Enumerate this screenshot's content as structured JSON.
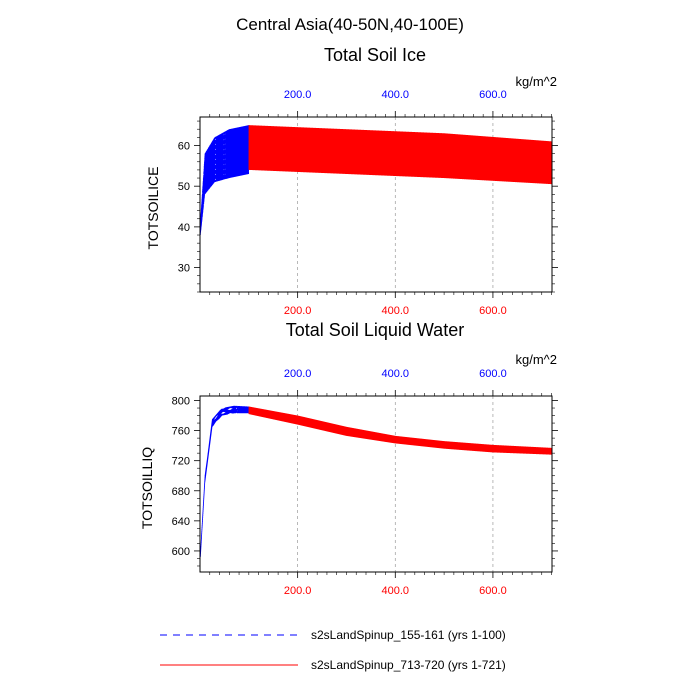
{
  "figure": {
    "suptitle": "Central Asia(40-50N,40-100E)"
  },
  "colors": {
    "series_a": "#0000ff",
    "series_b": "#ff0000",
    "axis": "#000000",
    "grid": "#9a9a9a"
  },
  "chart_data": [
    {
      "type": "line",
      "title": "Total Soil Ice",
      "ylabel": "TOTSOILICE",
      "units_label": "kg/m^2",
      "xlim": [
        0,
        721
      ],
      "ylim": [
        24,
        67
      ],
      "yticks": [
        30,
        40,
        50,
        60
      ],
      "ytick_labels": [
        "30",
        "40",
        "50",
        "60"
      ],
      "xticks": [
        200,
        400,
        600
      ],
      "top_tick_labels": [
        "200.0",
        "400.0",
        "600.0"
      ],
      "bottom_tick_labels": [
        "200.0",
        "400.0",
        "600.0"
      ],
      "series": [
        {
          "name": "s2sLandSpinup_155-161 (yrs 1-100)",
          "color": "#0000ff",
          "dashed": true,
          "x_range": [
            1,
            100
          ],
          "start_value": 38,
          "upper_envelope": [
            [
              1,
              42
            ],
            [
              10,
              58
            ],
            [
              30,
              62
            ],
            [
              60,
              64
            ],
            [
              100,
              65
            ]
          ],
          "lower_envelope": [
            [
              1,
              38
            ],
            [
              10,
              48
            ],
            [
              30,
              51
            ],
            [
              60,
              52
            ],
            [
              100,
              53
            ]
          ]
        },
        {
          "name": "s2sLandSpinup_713-720 (yrs 1-721)",
          "color": "#ff0000",
          "dashed": false,
          "x_range": [
            100,
            721
          ],
          "upper_envelope": [
            [
              100,
              65
            ],
            [
              300,
              64
            ],
            [
              500,
              63
            ],
            [
              721,
              61
            ]
          ],
          "lower_envelope": [
            [
              100,
              54
            ],
            [
              300,
              53
            ],
            [
              500,
              52
            ],
            [
              721,
              50.5
            ]
          ]
        }
      ]
    },
    {
      "type": "line",
      "title": "Total Soil Liquid Water",
      "ylabel": "TOTSOILLIQ",
      "units_label": "kg/m^2",
      "xlim": [
        0,
        721
      ],
      "ylim": [
        572,
        806
      ],
      "yticks": [
        600,
        640,
        680,
        720,
        760,
        800
      ],
      "ytick_labels": [
        "600",
        "640",
        "680",
        "720",
        "760",
        "800"
      ],
      "xticks": [
        200,
        400,
        600
      ],
      "top_tick_labels": [
        "200.0",
        "400.0",
        "600.0"
      ],
      "bottom_tick_labels": [
        "200.0",
        "400.0",
        "600.0"
      ],
      "series": [
        {
          "name": "s2sLandSpinup_155-161 (yrs 1-100)",
          "color": "#0000ff",
          "dashed": true,
          "x_range": [
            1,
            100
          ],
          "start_value": 592,
          "upper_envelope": [
            [
              1,
              600
            ],
            [
              10,
              700
            ],
            [
              25,
              775
            ],
            [
              45,
              790
            ],
            [
              70,
              793
            ],
            [
              100,
              792
            ]
          ],
          "lower_envelope": [
            [
              1,
              590
            ],
            [
              10,
              690
            ],
            [
              25,
              765
            ],
            [
              45,
              780
            ],
            [
              70,
              783
            ],
            [
              100,
              783
            ]
          ]
        },
        {
          "name": "s2sLandSpinup_713-720 (yrs 1-721)",
          "color": "#ff0000",
          "dashed": false,
          "x_range": [
            100,
            721
          ],
          "upper_envelope": [
            [
              100,
              792
            ],
            [
              200,
              780
            ],
            [
              300,
              765
            ],
            [
              400,
              753
            ],
            [
              500,
              746
            ],
            [
              600,
              741
            ],
            [
              721,
              737
            ]
          ],
          "lower_envelope": [
            [
              100,
              782
            ],
            [
              200,
              768
            ],
            [
              300,
              753
            ],
            [
              400,
              743
            ],
            [
              500,
              736
            ],
            [
              600,
              731
            ],
            [
              721,
              728
            ]
          ]
        }
      ]
    }
  ],
  "legend": [
    {
      "label": "s2sLandSpinup_155-161 (yrs 1-100)",
      "color": "#0000ff",
      "dashed": true
    },
    {
      "label": "s2sLandSpinup_713-720 (yrs 1-721)",
      "color": "#ff0000",
      "dashed": false
    }
  ]
}
